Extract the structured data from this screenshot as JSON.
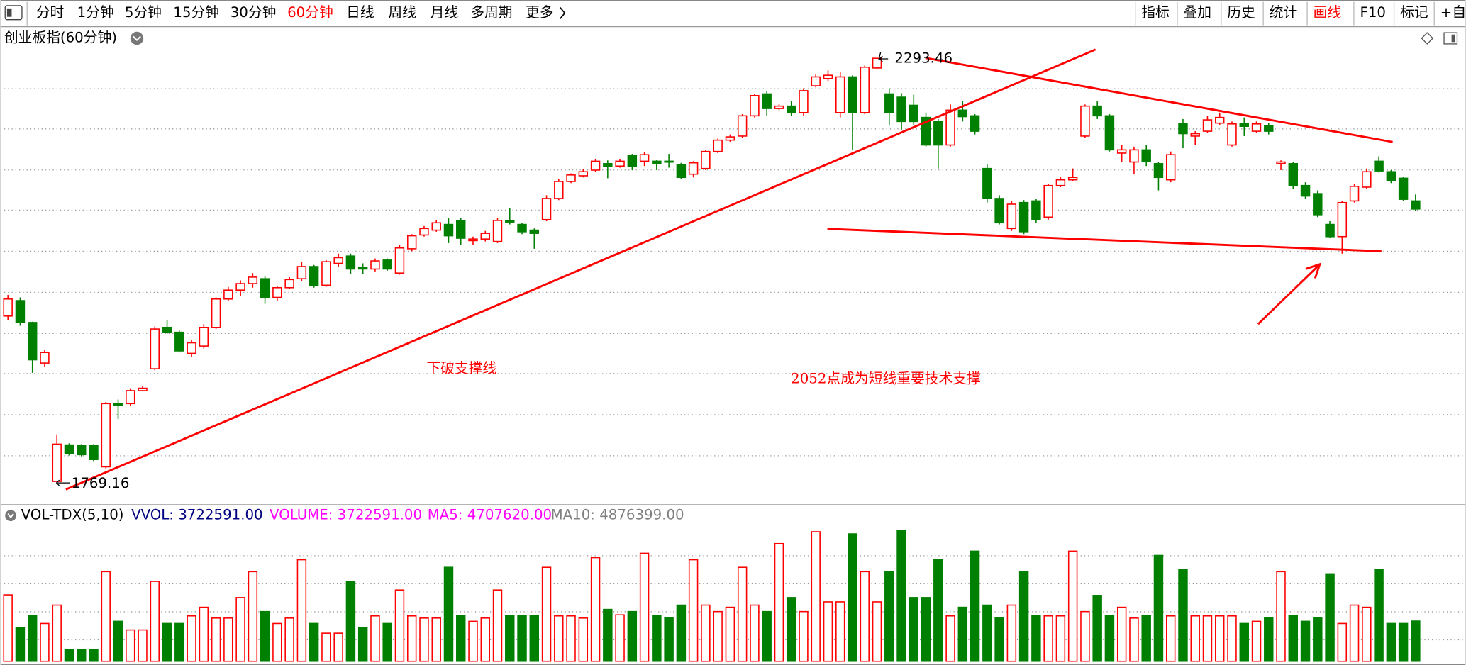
{
  "toolbar": {
    "periods": [
      "分时",
      "1分钟",
      "5分钟",
      "15分钟",
      "30分钟",
      "60分钟",
      "日线",
      "周线",
      "月线",
      "多周期",
      "更多"
    ],
    "active_period": 5,
    "tools": [
      "指标",
      "叠加",
      "历史",
      "统计",
      "画线",
      "F10",
      "标记",
      "+自"
    ],
    "active_tool": 4,
    "active_color": "#ff0000"
  },
  "chart_data": {
    "type": "candlestick",
    "title": "创业板指(60分钟)",
    "up_color": "#ff0000",
    "down_color": "#008000",
    "ylim": [
      1742.7,
      2330.3
    ],
    "open": [
      1975,
      1994,
      1967,
      1917,
      1771,
      1816,
      1815,
      1815,
      1789,
      1867,
      1867,
      1883,
      1910,
      1961,
      1955,
      1929,
      1938,
      1961,
      1996,
      2007,
      2015,
      2021,
      1998,
      2010,
      2021,
      2036,
      2013,
      2040,
      2049,
      2035,
      2033,
      2044,
      2028,
      2058,
      2075,
      2081,
      2088,
      2093,
      2068,
      2070,
      2067,
      2093,
      2088,
      2081,
      2094,
      2120,
      2141,
      2148,
      2155,
      2163,
      2160,
      2173,
      2166,
      2166,
      2166,
      2162,
      2150,
      2157,
      2178,
      2192,
      2197,
      2222,
      2249,
      2231,
      2234,
      2226,
      2259,
      2268,
      2226,
      2270,
      2226,
      2281,
      2249,
      2245,
      2235,
      2220,
      2215,
      2186,
      2229,
      2222,
      2157,
      2120,
      2083,
      2115,
      2117,
      2097,
      2136,
      2143,
      2197,
      2234,
      2222,
      2176,
      2165,
      2180,
      2163,
      2143,
      2212,
      2197,
      2203,
      2213,
      2186,
      2212,
      2203,
      2210,
      2163,
      2163,
      2136,
      2126,
      2088,
      2073,
      2117,
      2134,
      2166,
      2153,
      2145,
      2117
    ],
    "high": [
      2001,
      1998,
      1968,
      1933,
      1829,
      1818,
      1817,
      1817,
      1869,
      1872,
      1886,
      1889,
      1962,
      1970,
      1957,
      1946,
      1965,
      1998,
      2011,
      2019,
      2028,
      2024,
      2012,
      2023,
      2042,
      2038,
      2044,
      2052,
      2052,
      2040,
      2046,
      2046,
      2063,
      2076,
      2086,
      2093,
      2096,
      2096,
      2073,
      2080,
      2096,
      2108,
      2090,
      2083,
      2124,
      2144,
      2151,
      2156,
      2169,
      2167,
      2169,
      2175,
      2177,
      2168,
      2175,
      2164,
      2166,
      2180,
      2194,
      2199,
      2224,
      2249,
      2253,
      2236,
      2240,
      2256,
      2273,
      2278,
      2276,
      2272,
      2284,
      2293.46,
      2256,
      2250,
      2248,
      2226,
      2218,
      2236,
      2240,
      2224,
      2162,
      2124,
      2117,
      2118,
      2120,
      2138,
      2146,
      2157,
      2236,
      2240,
      2224,
      2186,
      2184,
      2186,
      2165,
      2178,
      2218,
      2203,
      2222,
      2226,
      2215,
      2220,
      2215,
      2213,
      2167,
      2165,
      2140,
      2130,
      2092,
      2117,
      2138,
      2157,
      2172,
      2155,
      2147,
      2125
    ],
    "low": [
      1970,
      1963,
      1905,
      1912,
      1769.16,
      1803,
      1802,
      1796,
      1787,
      1848,
      1864,
      1882,
      1908,
      1953,
      1930,
      1925,
      1935,
      1959,
      1994,
      2000,
      2010,
      1990,
      1994,
      2008,
      2018,
      2010,
      2011,
      2036,
      2027,
      2027,
      2030,
      2031,
      2026,
      2055,
      2073,
      2079,
      2065,
      2063,
      2063,
      2067,
      2065,
      2088,
      2076,
      2058,
      2092,
      2118,
      2139,
      2146,
      2153,
      2145,
      2158,
      2155,
      2160,
      2155,
      2158,
      2144,
      2146,
      2155,
      2176,
      2190,
      2195,
      2220,
      2222,
      2229,
      2222,
      2222,
      2257,
      2265,
      2220,
      2180,
      2224,
      2279,
      2210,
      2205,
      2210,
      2184,
      2157,
      2184,
      2215,
      2199,
      2115,
      2088,
      2080,
      2076,
      2090,
      2094,
      2134,
      2141,
      2195,
      2218,
      2178,
      2165,
      2150,
      2160,
      2130,
      2140,
      2182,
      2186,
      2201,
      2211,
      2184,
      2197,
      2201,
      2199,
      2155,
      2132,
      2120,
      2097,
      2071,
      2052,
      2115,
      2132,
      2152,
      2139,
      2117,
      2105
    ],
    "close": [
      1996,
      1967,
      1921,
      1930,
      1817,
      1805,
      1804,
      1798,
      1867,
      1865,
      1883,
      1886,
      1959,
      1955,
      1932,
      1942,
      1961,
      1996,
      2007,
      2015,
      2023,
      1998,
      2010,
      2020,
      2036,
      2013,
      2042,
      2047,
      2033,
      2033,
      2043,
      2033,
      2059,
      2074,
      2083,
      2090,
      2074,
      2071,
      2070,
      2077,
      2093,
      2091,
      2079,
      2077,
      2120,
      2141,
      2149,
      2153,
      2166,
      2160,
      2166,
      2160,
      2174,
      2163,
      2165,
      2146,
      2164,
      2178,
      2192,
      2196,
      2222,
      2247,
      2231,
      2234,
      2226,
      2253,
      2270,
      2272,
      2270,
      2226,
      2282,
      2293,
      2226,
      2215,
      2215,
      2186,
      2186,
      2229,
      2221,
      2203,
      2120,
      2090,
      2113,
      2079,
      2094,
      2136,
      2143,
      2146,
      2234,
      2222,
      2180,
      2180,
      2180,
      2166,
      2146,
      2174,
      2200,
      2200,
      2217,
      2220,
      2212,
      2209,
      2212,
      2203,
      2165,
      2136,
      2123,
      2100,
      2073,
      2115,
      2135,
      2153,
      2154,
      2142,
      2119,
      2107
    ],
    "annotations": [
      "下破支撑线",
      "2052点成为短线重要技术支撑"
    ],
    "annotation_color": "#ff0000",
    "volume": {
      "name": "VOL-TDX(5,10)",
      "legend": [
        {
          "text": "VVOL: 3722591.00",
          "color": "#000080"
        },
        {
          "text": "VOLUME: 3722591.00",
          "color": "#ff00ff"
        },
        {
          "text": "MA5: 4707620.00",
          "color": "#ff00ff"
        },
        {
          "text": "MA10: 4876399.00",
          "color": "#808080"
        }
      ],
      "ylim": [
        0,
        14100000
      ],
      "values": [
        6150000,
        3100000,
        4200000,
        3500000,
        5200000,
        1100000,
        1100000,
        1100000,
        8300000,
        3700000,
        2900000,
        2900000,
        7400000,
        3500000,
        3500000,
        4200000,
        5000000,
        4000000,
        4000000,
        5900000,
        8300000,
        4600000,
        3500000,
        4000000,
        9400000,
        3500000,
        2600000,
        2600000,
        7400000,
        3100000,
        4200000,
        3500000,
        6600000,
        4200000,
        4000000,
        4000000,
        8700000,
        4200000,
        3700000,
        4000000,
        6600000,
        4200000,
        4200000,
        4200000,
        8700000,
        4200000,
        4200000,
        4000000,
        9600000,
        4800000,
        4300000,
        4600000,
        10000000,
        4200000,
        4000000,
        5200000,
        9400000,
        5200000,
        4600000,
        5000000,
        8700000,
        5200000,
        4600000,
        10900000,
        5900000,
        4600000,
        12000000,
        5500000,
        5500000,
        11800000,
        8300000,
        5500000,
        8300000,
        12100000,
        5900000,
        5900000,
        9400000,
        4200000,
        5000000,
        10200000,
        5200000,
        4000000,
        5200000,
        8300000,
        4200000,
        4200000,
        4200000,
        10200000,
        4600000,
        6100000,
        4200000,
        5000000,
        4000000,
        4200000,
        9800000,
        4200000,
        8500000,
        4200000,
        4200000,
        4200000,
        4200000,
        3500000,
        3700000,
        4000000,
        8300000,
        4200000,
        3700000,
        4000000,
        8100000,
        3500000,
        5200000,
        5000000,
        8500000,
        3500000,
        3500000,
        3722591
      ]
    }
  }
}
